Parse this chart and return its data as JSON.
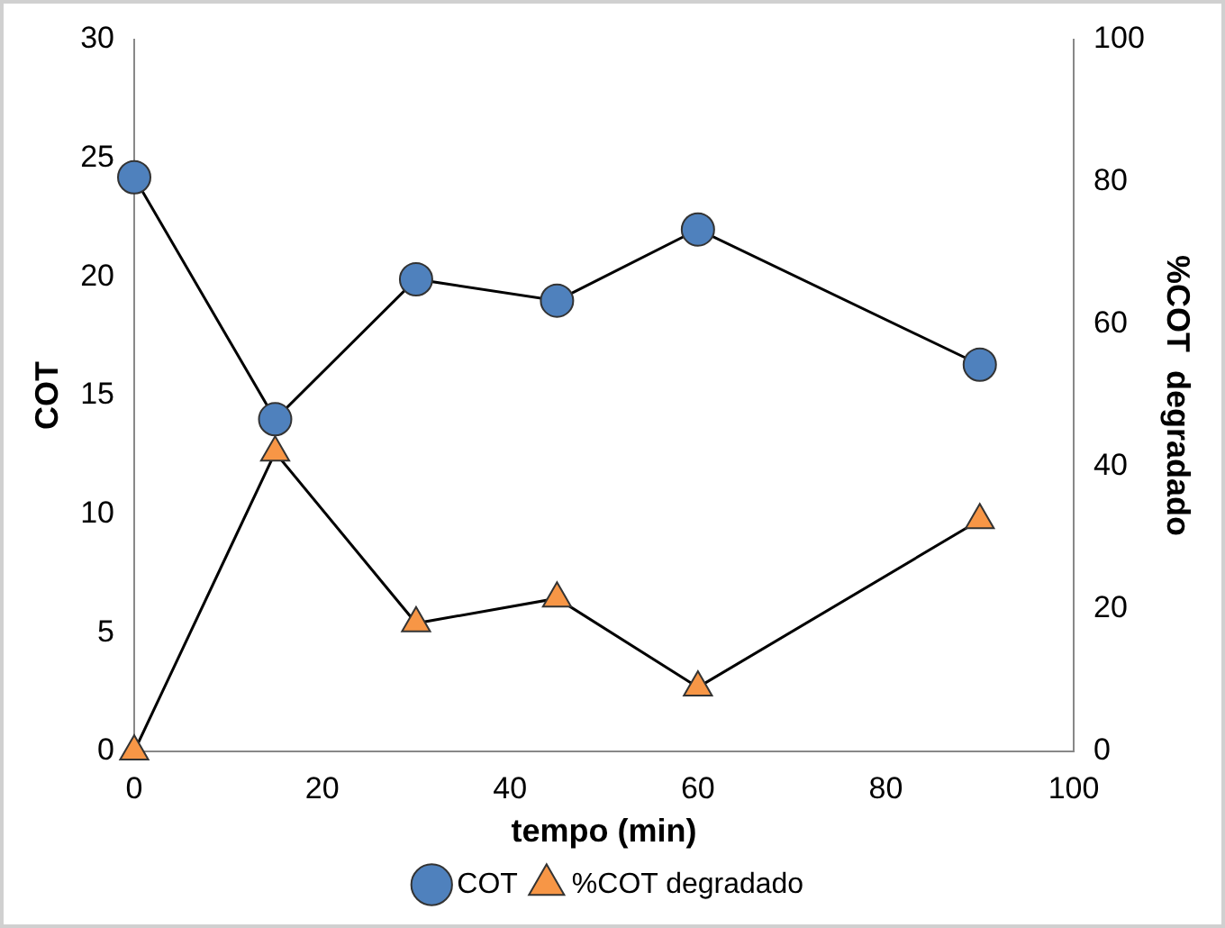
{
  "chart_data": {
    "type": "line",
    "xlabel": "tempo (min)",
    "ylabel": "COT",
    "y2label": "%COT  degradado",
    "x": [
      0,
      15,
      30,
      45,
      60,
      90
    ],
    "series": [
      {
        "name": "COT",
        "color": "#4f81bd",
        "marker": "circle",
        "values": [
          24.2,
          14.0,
          19.9,
          19.0,
          22.0,
          16.3
        ]
      },
      {
        "name": "%COT degradado",
        "color": "#f79646",
        "marker": "triangle",
        "axis": "y2",
        "values": [
          0,
          42,
          18,
          21.5,
          9,
          32.5
        ]
      }
    ],
    "xlim": [
      0,
      100
    ],
    "xticks": [
      0,
      20,
      40,
      60,
      80,
      100
    ],
    "ylim": [
      0,
      30
    ],
    "yticks": [
      0,
      5,
      10,
      15,
      20,
      25,
      30
    ],
    "y2lim": [
      0,
      100
    ],
    "y2ticks": [
      0,
      20,
      40,
      60,
      80,
      100
    ],
    "grid": false,
    "legend": "bottom",
    "line_style": "solid"
  }
}
